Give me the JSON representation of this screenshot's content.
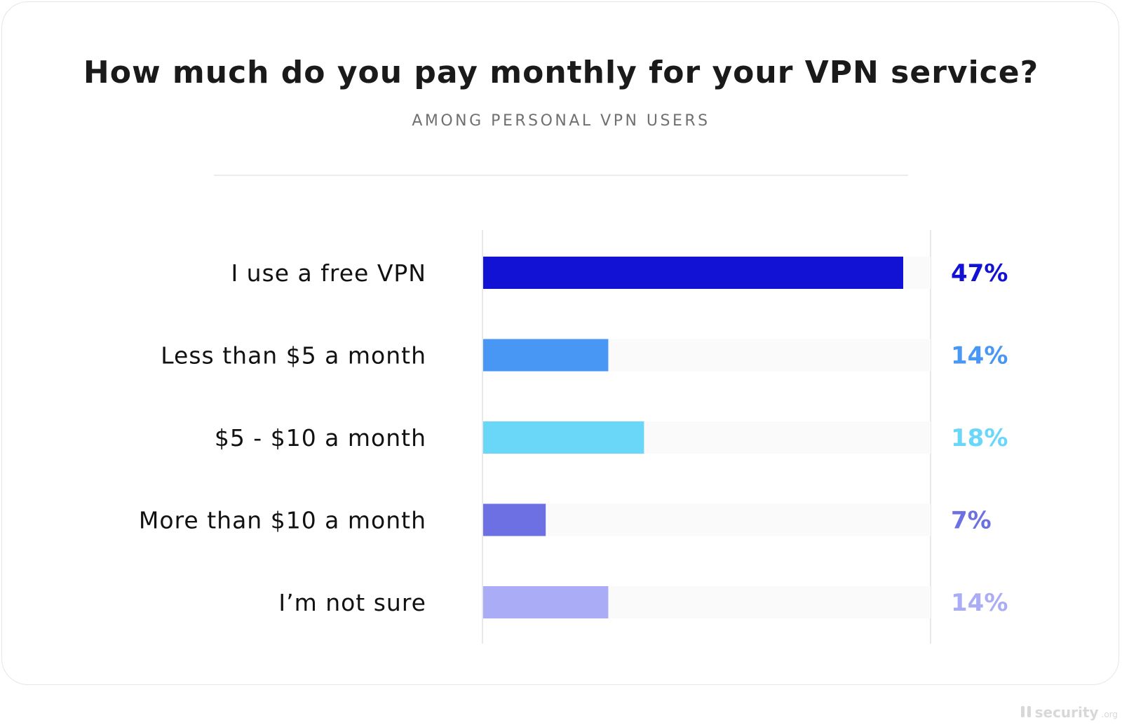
{
  "chart_data": {
    "type": "bar",
    "orientation": "horizontal",
    "title": "How much do you pay monthly for your VPN service?",
    "subtitle": "AMONG PERSONAL VPN USERS",
    "categories": [
      "I use a free VPN",
      "Less than $5 a month",
      "$5 - $10 a month",
      "More than $10 a month",
      "I’m not sure"
    ],
    "values": [
      47,
      14,
      18,
      7,
      14
    ],
    "value_labels": [
      "47%",
      "14%",
      "18%",
      "7%",
      "14%"
    ],
    "colors": [
      "#1212d4",
      "#4897f5",
      "#6ad7f9",
      "#6c70e3",
      "#aaacf6"
    ],
    "track_color": "#fafafa",
    "xlim": [
      0,
      50
    ],
    "grid": false,
    "legend": "none"
  },
  "watermark": {
    "brand": "security",
    "suffix": ".org"
  }
}
